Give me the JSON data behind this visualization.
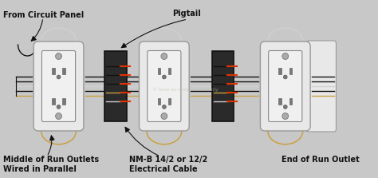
{
  "bg_color": "#c8c8c8",
  "plate_color": "#e8e8e8",
  "plate_edge": "#999999",
  "outlet_body": "#f0f0f0",
  "outlet_edge": "#888888",
  "slot_color": "#777777",
  "screw_color": "#aaaaaa",
  "jbox_color": "#2a2a2a",
  "jbox_edge": "#111111",
  "wire_black": "#111111",
  "wire_white": "#d0d0d0",
  "wire_ground": "#c8a040",
  "wire_red": "#dd3300",
  "text_color": "#111111",
  "wm_color": "#bbbbaa",
  "figsize": [
    4.74,
    2.23
  ],
  "dpi": 100,
  "labels": {
    "from_panel": "From Circuit Panel",
    "pigtail": "Pigtail",
    "middle_outlets": "Middle of Run Outlets\nWired in Parallel",
    "nmb_cable": "NM-B 14/2 or 12/2\nElectrical Cable",
    "end_outlet": "End of Run Outlet"
  }
}
